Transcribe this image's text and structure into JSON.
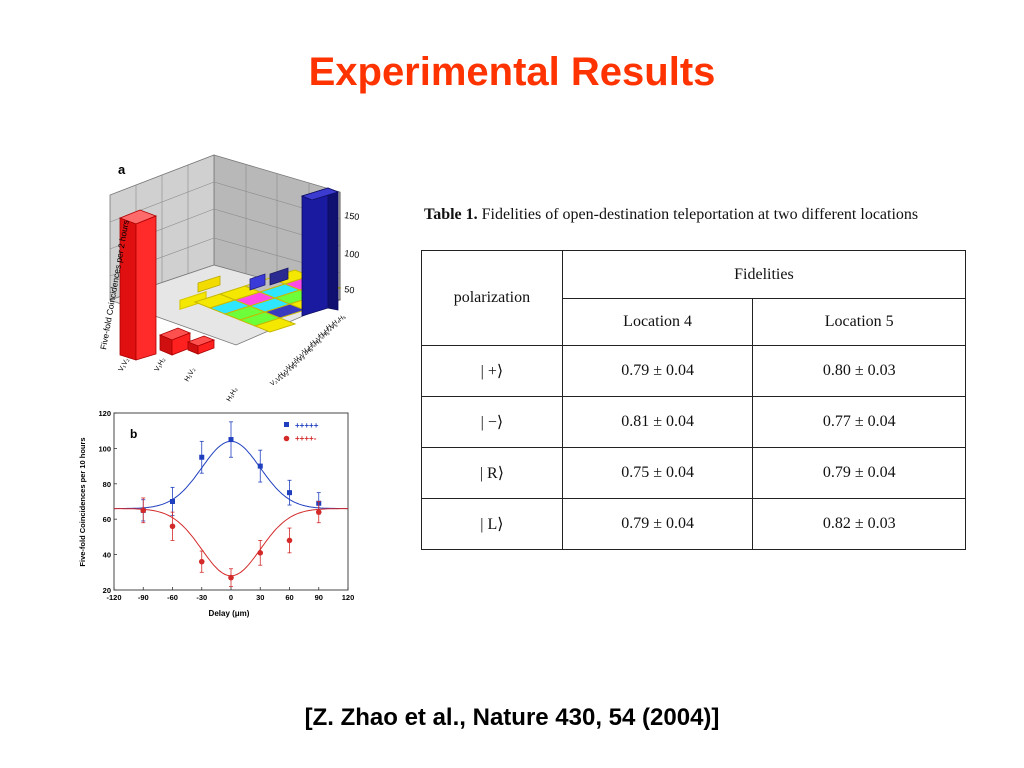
{
  "slide": {
    "title": "Experimental Results",
    "citation": "[Z. Zhao et al., Nature 430,  54 (2004)]"
  },
  "figure_a": {
    "panel_label": "a",
    "ylabel": "Five-fold Coincidences per 2 hours",
    "z_ticks": [
      "150",
      "100",
      "50"
    ],
    "front_labels": [
      "V₁V₂",
      "V₁H₂",
      "H₁V₂",
      "H₁H₂"
    ],
    "side_labels": [
      "H₃H₄H₅",
      "H₃H₄V₅",
      "H₃V₄H₅",
      "V₃H₄H₅",
      "V₃V₄H₅",
      "V₃H₄V₅",
      "H₃V₄V₅",
      "V₃V₄V₅"
    ],
    "colors": {
      "red": "#ff1a1a",
      "blue": "#1a1aa0",
      "yellow": "#f5e800"
    }
  },
  "figure_b": {
    "panel_label": "b",
    "legend": [
      {
        "label": "+++++",
        "color": "#1f3fbf"
      },
      {
        "label": "++++-",
        "color": "#d42a2a"
      }
    ]
  },
  "chart_data": {
    "type": "scatter",
    "title": "",
    "xlabel": "Delay (μm)",
    "ylabel": "Five-fold Coincidences per 10 hours",
    "xlim": [
      -120,
      120
    ],
    "ylim": [
      20,
      120
    ],
    "x_ticks": [
      -120,
      -90,
      -60,
      -30,
      0,
      30,
      60,
      90,
      120
    ],
    "y_ticks": [
      20,
      40,
      60,
      80,
      100,
      120
    ],
    "series": [
      {
        "name": "+++++",
        "color": "#1f3fbf",
        "x": [
          -90,
          -60,
          -30,
          0,
          30,
          60,
          90
        ],
        "y": [
          65,
          70,
          95,
          105,
          90,
          75,
          69
        ],
        "err": [
          6,
          8,
          9,
          10,
          9,
          7,
          6
        ]
      },
      {
        "name": "++++-",
        "color": "#d42a2a",
        "x": [
          -90,
          -60,
          -30,
          0,
          30,
          60,
          90
        ],
        "y": [
          65,
          56,
          36,
          27,
          41,
          48,
          64
        ],
        "err": [
          7,
          8,
          6,
          5,
          7,
          7,
          6
        ]
      }
    ],
    "fits": [
      {
        "color": "#1f3fbf",
        "baseline": 66,
        "peak": 104,
        "width": 30
      },
      {
        "color": "#d42a2a",
        "baseline": 66,
        "peak": 28,
        "width": 30
      }
    ]
  },
  "table": {
    "caption_label": "Table 1.",
    "caption_text": " Fidelities of open-destination teleportation at two different locations",
    "header_polarization": "polarization",
    "header_fidelities": "Fidelities",
    "col_loc4": "Location 4",
    "col_loc5": "Location 5",
    "rows": [
      {
        "state": "| +⟩",
        "loc4": "0.79 ± 0.04",
        "loc5": "0.80 ± 0.03"
      },
      {
        "state": "| −⟩",
        "loc4": "0.81 ± 0.04",
        "loc5": "0.77 ± 0.04"
      },
      {
        "state": "| R⟩",
        "loc4": "0.75 ± 0.04",
        "loc5": "0.79 ± 0.04"
      },
      {
        "state": "| L⟩",
        "loc4": "0.79 ± 0.04",
        "loc5": "0.82 ± 0.03"
      }
    ]
  }
}
